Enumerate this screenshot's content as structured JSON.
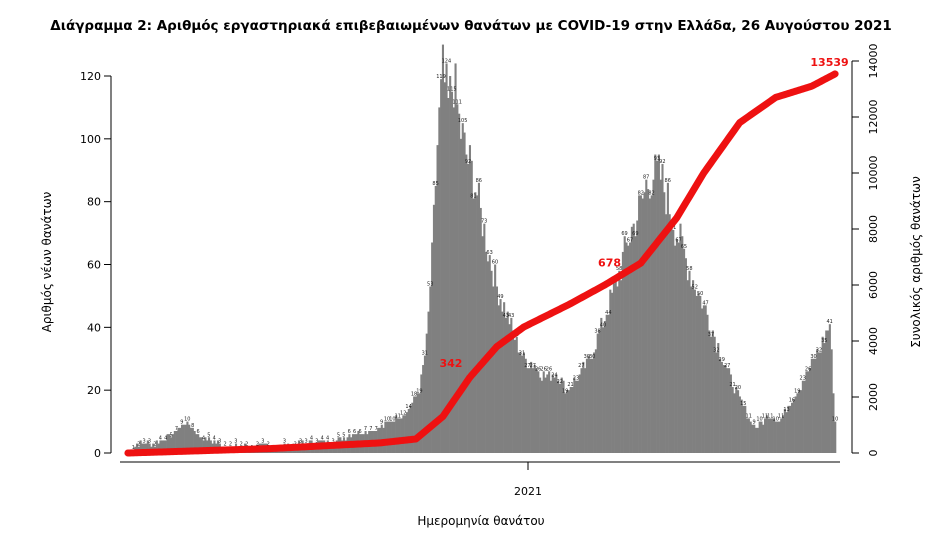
{
  "chart_data": {
    "type": "bar",
    "title": "Διάγραμμα 2: Αριθμός εργαστηριακά επιβεβαιωμένων θανάτων με COVID-19 στην Ελλάδα, 26 Αυγούστου 2021",
    "xlabel": "Ημερομηνία θανάτου",
    "ylabel": "Αριθμός νέων θανάτων",
    "y2label": "Συνολικός αριθμός θανάτων",
    "x_tick_labels": [
      "2021"
    ],
    "ylim": [
      0,
      125
    ],
    "y_ticks": [
      0,
      20,
      40,
      60,
      80,
      100,
      120
    ],
    "y2lim": [
      0,
      14000
    ],
    "y2_ticks": [
      0,
      2000,
      4000,
      6000,
      8000,
      10000,
      12000,
      14000
    ],
    "grid": false,
    "bar_color": "#808080",
    "line_color": "#ee1111",
    "daily_key_points": [
      [
        0,
        0
      ],
      [
        5,
        3
      ],
      [
        15,
        3
      ],
      [
        25,
        6
      ],
      [
        32,
        10
      ],
      [
        40,
        5
      ],
      [
        55,
        2
      ],
      [
        70,
        2
      ],
      [
        85,
        2
      ],
      [
        100,
        3
      ],
      [
        115,
        4
      ],
      [
        125,
        6
      ],
      [
        140,
        8
      ],
      [
        148,
        11
      ],
      [
        155,
        13
      ],
      [
        162,
        20
      ],
      [
        166,
        35
      ],
      [
        169,
        62
      ],
      [
        172,
        98
      ],
      [
        175,
        121
      ],
      [
        178,
        110
      ],
      [
        181,
        119
      ],
      [
        184,
        105
      ],
      [
        188,
        95
      ],
      [
        192,
        88
      ],
      [
        196,
        76
      ],
      [
        200,
        65
      ],
      [
        204,
        55
      ],
      [
        208,
        48
      ],
      [
        212,
        42
      ],
      [
        216,
        35
      ],
      [
        220,
        30
      ],
      [
        226,
        28
      ],
      [
        232,
        24
      ],
      [
        238,
        26
      ],
      [
        244,
        20
      ],
      [
        250,
        24
      ],
      [
        255,
        28
      ],
      [
        260,
        35
      ],
      [
        266,
        45
      ],
      [
        272,
        55
      ],
      [
        278,
        68
      ],
      [
        284,
        77
      ],
      [
        288,
        85
      ],
      [
        292,
        89
      ],
      [
        296,
        88
      ],
      [
        300,
        80
      ],
      [
        304,
        72
      ],
      [
        310,
        62
      ],
      [
        316,
        52
      ],
      [
        322,
        44
      ],
      [
        328,
        34
      ],
      [
        334,
        25
      ],
      [
        340,
        17
      ],
      [
        346,
        10
      ],
      [
        350,
        8
      ],
      [
        356,
        12
      ],
      [
        362,
        10
      ],
      [
        368,
        16
      ],
      [
        374,
        22
      ],
      [
        380,
        28
      ],
      [
        386,
        35
      ],
      [
        390,
        41
      ],
      [
        393,
        10
      ]
    ],
    "cumulative_labels": [
      "342",
      "678",
      "13539"
    ],
    "cumulative_key_points": [
      [
        0,
        0
      ],
      [
        80,
        160
      ],
      [
        140,
        360
      ],
      [
        160,
        500
      ],
      [
        175,
        1300
      ],
      [
        190,
        2700
      ],
      [
        205,
        3800
      ],
      [
        220,
        4500
      ],
      [
        245,
        5300
      ],
      [
        265,
        6000
      ],
      [
        285,
        6780
      ],
      [
        305,
        8400
      ],
      [
        320,
        10000
      ],
      [
        340,
        11800
      ],
      [
        360,
        12700
      ],
      [
        380,
        13100
      ],
      [
        393,
        13539
      ]
    ]
  }
}
